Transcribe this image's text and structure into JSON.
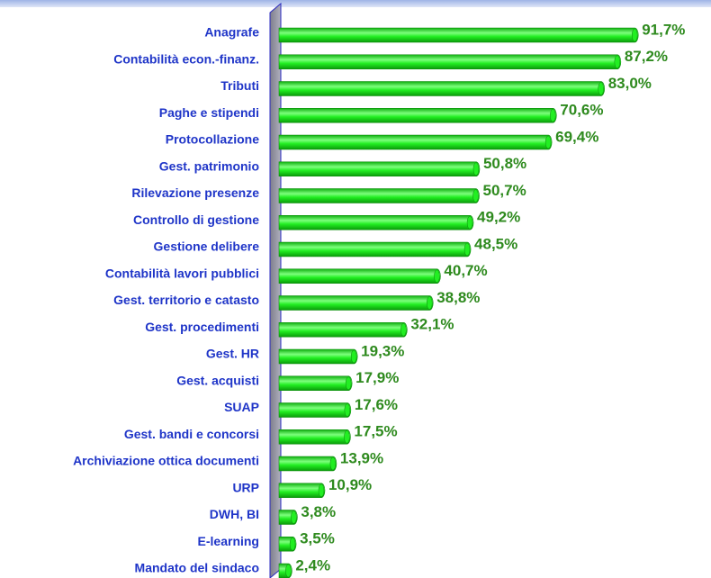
{
  "chart_data": {
    "type": "barh",
    "categories": [
      "Anagrafe",
      "Contabilità econ.-finanz.",
      "Tributi",
      "Paghe e stipendi",
      "Protocollazione",
      "Gest. patrimonio",
      "Rilevazione presenze",
      "Controllo di gestione",
      "Gestione delibere",
      "Contabilità lavori pubblici",
      "Gest. territorio e catasto",
      "Gest. procedimenti",
      "Gest. HR",
      "Gest. acquisti",
      "SUAP",
      "Gest. bandi e concorsi",
      "Archiviazione ottica documenti",
      "URP",
      "DWH, BI",
      "E-learning",
      "Mandato del sindaco"
    ],
    "values": [
      91.7,
      87.2,
      83.0,
      70.6,
      69.4,
      50.8,
      50.7,
      49.2,
      48.5,
      40.7,
      38.8,
      32.1,
      19.3,
      17.9,
      17.6,
      17.5,
      13.9,
      10.9,
      3.8,
      3.5,
      2.4
    ],
    "value_labels": [
      "91,7%",
      "87,2%",
      "83,0%",
      "70,6%",
      "69,4%",
      "50,8%",
      "50,7%",
      "49,2%",
      "48,5%",
      "40,7%",
      "38,8%",
      "32,1%",
      "19,3%",
      "17,9%",
      "17,6%",
      "17,5%",
      "13,9%",
      "10,9%",
      "3,8%",
      "3,5%",
      "2,4%"
    ],
    "color": "#22ee22",
    "xlim": [
      0,
      100
    ]
  }
}
